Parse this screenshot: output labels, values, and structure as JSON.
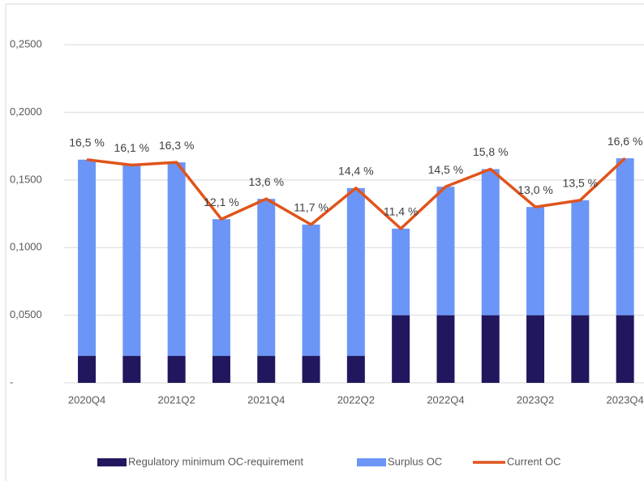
{
  "chart_data": {
    "type": "bar_line",
    "categories": [
      "2020Q4",
      null,
      "2021Q2",
      null,
      "2021Q4",
      null,
      "2022Q2",
      null,
      "2022Q4",
      null,
      "2023Q2",
      null,
      "2023Q4"
    ],
    "series": [
      {
        "name": "Regulatory minimum OC-requirement",
        "type": "bar",
        "color": "#21175e",
        "values": [
          0.02,
          0.02,
          0.02,
          0.02,
          0.02,
          0.02,
          0.02,
          0.05,
          0.05,
          0.05,
          0.05,
          0.05,
          0.05
        ]
      },
      {
        "name": "Surplus OC",
        "type": "bar",
        "color": "#6b96f7",
        "values": [
          0.145,
          0.141,
          0.143,
          0.101,
          0.116,
          0.097,
          0.124,
          0.064,
          0.095,
          0.108,
          0.08,
          0.085,
          0.116
        ]
      },
      {
        "name": "Current OC",
        "type": "line",
        "color": "#e0541c",
        "values": [
          0.165,
          0.161,
          0.163,
          0.121,
          0.136,
          0.117,
          0.144,
          0.114,
          0.145,
          0.158,
          0.13,
          0.135,
          0.166
        ],
        "value_labels": [
          "16,5 %",
          "16,1 %",
          "16,3 %",
          "12,1 %",
          "13,6 %",
          "11,7 %",
          "14,4 %",
          "11,4 %",
          "14,5 %",
          "15,8 %",
          "13,0 %",
          "13,5 %",
          "16,6 %"
        ]
      }
    ],
    "ylim": [
      0,
      0.28
    ],
    "yticks": [
      {
        "value": 0,
        "label": "-"
      },
      {
        "value": 0.05,
        "label": "0,0500"
      },
      {
        "value": 0.1,
        "label": "0,1000"
      },
      {
        "value": 0.15,
        "label": "0,1500"
      },
      {
        "value": 0.2,
        "label": "0,2000"
      },
      {
        "value": 0.25,
        "label": "0,2500"
      }
    ],
    "grid": true,
    "legend": "bottom"
  }
}
